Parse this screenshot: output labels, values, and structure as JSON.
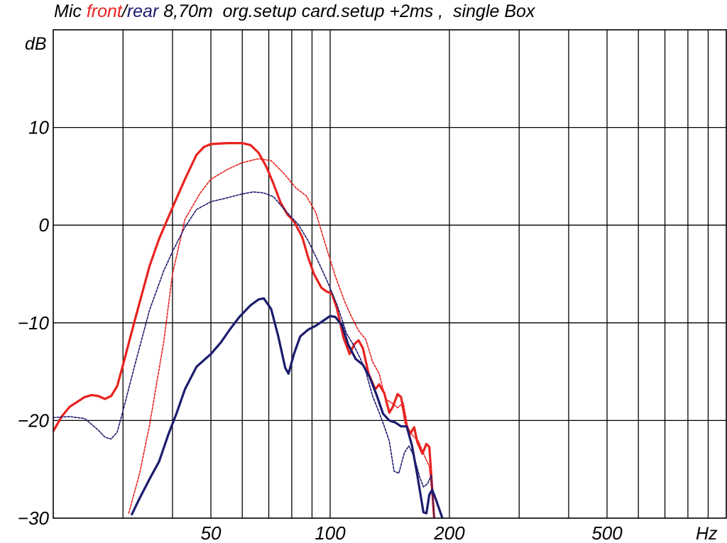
{
  "chart_data": {
    "type": "line",
    "title_parts": [
      {
        "text": "Mic ",
        "color": "#000000"
      },
      {
        "text": "front",
        "color": "#e8231f"
      },
      {
        "text": "/",
        "color": "#000000"
      },
      {
        "text": "rear",
        "color": "#1c1c6e"
      },
      {
        "text": " 8,70m  org.setup card.setup +2ms ,  single Box",
        "color": "#000000"
      }
    ],
    "xlabel": "Hz",
    "ylabel": "dB",
    "x_scale": "log",
    "xlim": [
      20,
      1000
    ],
    "ylim": [
      -30,
      20
    ],
    "grid": true,
    "x_ticks": [
      {
        "value": 50,
        "label": "50"
      },
      {
        "value": 100,
        "label": "100"
      },
      {
        "value": 200,
        "label": "200"
      },
      {
        "value": 500,
        "label": "500"
      }
    ],
    "y_ticks": [
      {
        "value": 10,
        "label": "10"
      },
      {
        "value": 0,
        "label": "0"
      },
      {
        "value": -10,
        "label": "−10"
      },
      {
        "value": -20,
        "label": "−20"
      },
      {
        "value": -30,
        "label": "−30"
      }
    ],
    "series": [
      {
        "name": "front",
        "color": "#e8231f",
        "style": "solid",
        "points": [
          [
            20,
            -21.1
          ],
          [
            21,
            -19.6
          ],
          [
            22,
            -18.6
          ],
          [
            24,
            -17.6
          ],
          [
            25,
            -17.4
          ],
          [
            26,
            -17.5
          ],
          [
            27,
            -17.8
          ],
          [
            28,
            -17.5
          ],
          [
            29,
            -16.5
          ],
          [
            30,
            -14.3
          ],
          [
            32,
            -10.0
          ],
          [
            35,
            -4.2
          ],
          [
            37,
            -1.4
          ],
          [
            40,
            1.8
          ],
          [
            43,
            4.7
          ],
          [
            46,
            7.2
          ],
          [
            48,
            8.0
          ],
          [
            50,
            8.3
          ],
          [
            55,
            8.4
          ],
          [
            60,
            8.4
          ],
          [
            63,
            8.2
          ],
          [
            66,
            7.4
          ],
          [
            69,
            6.0
          ],
          [
            72,
            4.2
          ],
          [
            75,
            2.3
          ],
          [
            78,
            1.1
          ],
          [
            81,
            0.4
          ],
          [
            85,
            -1.2
          ],
          [
            88,
            -3.3
          ],
          [
            91,
            -5.0
          ],
          [
            95,
            -6.4
          ],
          [
            98,
            -6.8
          ],
          [
            101,
            -7.0
          ],
          [
            104,
            -8.5
          ],
          [
            108,
            -11.5
          ],
          [
            112,
            -13.2
          ],
          [
            115,
            -12.2
          ],
          [
            118,
            -11.8
          ],
          [
            121,
            -12.6
          ],
          [
            125,
            -15.2
          ],
          [
            130,
            -16.8
          ],
          [
            133,
            -16.3
          ],
          [
            137,
            -17.2
          ],
          [
            141,
            -19.2
          ],
          [
            144,
            -18.6
          ],
          [
            148,
            -17.3
          ],
          [
            151,
            -17.6
          ],
          [
            155,
            -20.2
          ],
          [
            159,
            -21.4
          ],
          [
            163,
            -20.7
          ],
          [
            166,
            -22.2
          ],
          [
            171,
            -23.4
          ],
          [
            175,
            -22.4
          ],
          [
            178,
            -22.7
          ],
          [
            181,
            -27
          ],
          [
            183,
            -30
          ]
        ]
      },
      {
        "name": "front (dotted)",
        "color": "#e8231f",
        "style": "dotted",
        "points": [
          [
            31,
            -29.5
          ],
          [
            33,
            -25.5
          ],
          [
            35,
            -20.5
          ],
          [
            38,
            -12.0
          ],
          [
            40,
            -5.0
          ],
          [
            43,
            0.6
          ],
          [
            47,
            3.3
          ],
          [
            50,
            4.7
          ],
          [
            55,
            5.7
          ],
          [
            60,
            6.4
          ],
          [
            66,
            6.8
          ],
          [
            71,
            6.6
          ],
          [
            76,
            5.4
          ],
          [
            82,
            3.8
          ],
          [
            87,
            3.0
          ],
          [
            92,
            1.3
          ],
          [
            97,
            -1.8
          ],
          [
            103,
            -5.2
          ],
          [
            109,
            -7.9
          ],
          [
            113,
            -9.3
          ],
          [
            118,
            -10.8
          ],
          [
            123,
            -11.7
          ],
          [
            128,
            -14.0
          ],
          [
            133,
            -15.2
          ],
          [
            138,
            -17.8
          ],
          [
            143,
            -18.2
          ],
          [
            148,
            -18.7
          ],
          [
            153,
            -18.2
          ],
          [
            157,
            -20.7
          ],
          [
            162,
            -21.6
          ],
          [
            167,
            -22.1
          ],
          [
            173,
            -23.6
          ],
          [
            178,
            -24.7
          ],
          [
            183,
            -30
          ]
        ]
      },
      {
        "name": "rear",
        "color": "#1c1c6e",
        "style": "solid",
        "points": [
          [
            31.6,
            -29.6
          ],
          [
            33,
            -28
          ],
          [
            35,
            -26
          ],
          [
            37,
            -24.2
          ],
          [
            39,
            -21.5
          ],
          [
            41,
            -19.2
          ],
          [
            43,
            -16.8
          ],
          [
            46,
            -14.5
          ],
          [
            50,
            -13.2
          ],
          [
            53,
            -12.0
          ],
          [
            56,
            -10.6
          ],
          [
            59,
            -9.4
          ],
          [
            63,
            -8.2
          ],
          [
            66,
            -7.6
          ],
          [
            68,
            -7.5
          ],
          [
            71,
            -8.6
          ],
          [
            74,
            -11.4
          ],
          [
            77,
            -14.6
          ],
          [
            78.5,
            -15.2
          ],
          [
            81,
            -13.2
          ],
          [
            84,
            -11.4
          ],
          [
            88,
            -10.7
          ],
          [
            92,
            -10.3
          ],
          [
            96,
            -9.8
          ],
          [
            100,
            -9.3
          ],
          [
            103,
            -9.4
          ],
          [
            107,
            -10.2
          ],
          [
            111,
            -12.2
          ],
          [
            116,
            -13.7
          ],
          [
            121,
            -14.3
          ],
          [
            126,
            -15.6
          ],
          [
            131,
            -17.4
          ],
          [
            136,
            -19.3
          ],
          [
            141,
            -20.0
          ],
          [
            146,
            -20.2
          ],
          [
            151,
            -20.6
          ],
          [
            156,
            -20.6
          ],
          [
            161,
            -22.6
          ],
          [
            166,
            -25.6
          ],
          [
            172,
            -29.4
          ],
          [
            175,
            -29.5
          ],
          [
            178,
            -27.6
          ],
          [
            181,
            -27.1
          ],
          [
            185,
            -28.1
          ],
          [
            189,
            -29.2
          ],
          [
            192,
            -30
          ]
        ]
      },
      {
        "name": "rear (dotted)",
        "color": "#1c1c6e",
        "style": "dotted",
        "points": [
          [
            20,
            -19.7
          ],
          [
            22,
            -19.6
          ],
          [
            24,
            -19.8
          ],
          [
            25,
            -20.4
          ],
          [
            26,
            -21.0
          ],
          [
            27,
            -21.7
          ],
          [
            28,
            -21.9
          ],
          [
            29,
            -21.2
          ],
          [
            30,
            -19.0
          ],
          [
            32,
            -14.6
          ],
          [
            35,
            -8.7
          ],
          [
            38,
            -4.7
          ],
          [
            40,
            -2.7
          ],
          [
            43,
            -0.2
          ],
          [
            46,
            1.6
          ],
          [
            50,
            2.4
          ],
          [
            55,
            2.8
          ],
          [
            60,
            3.2
          ],
          [
            64,
            3.4
          ],
          [
            68,
            3.3
          ],
          [
            72,
            2.9
          ],
          [
            77,
            1.5
          ],
          [
            83,
            0.1
          ],
          [
            88,
            -1.6
          ],
          [
            93,
            -3.6
          ],
          [
            98,
            -5.6
          ],
          [
            104,
            -8.1
          ],
          [
            110,
            -11.1
          ],
          [
            115,
            -12.4
          ],
          [
            119,
            -13.6
          ],
          [
            123,
            -15.0
          ],
          [
            128,
            -17.5
          ],
          [
            133,
            -19.2
          ],
          [
            137,
            -20.6
          ],
          [
            141,
            -22.1
          ],
          [
            145,
            -25.2
          ],
          [
            149,
            -25.4
          ],
          [
            154,
            -23.3
          ],
          [
            158,
            -22.6
          ],
          [
            163,
            -23.7
          ],
          [
            168,
            -25.7
          ],
          [
            172,
            -26.8
          ],
          [
            176,
            -26.5
          ],
          [
            180,
            -25.6
          ],
          [
            183,
            -30
          ]
        ]
      }
    ]
  }
}
